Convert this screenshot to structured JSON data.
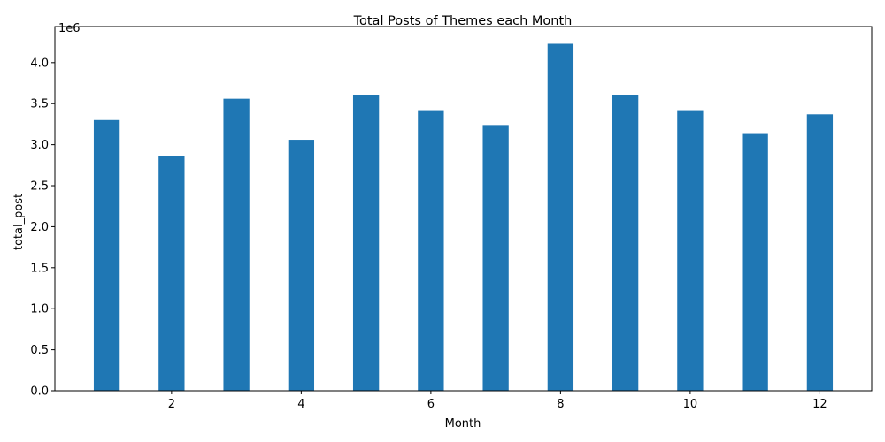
{
  "chart_data": {
    "type": "bar",
    "title": "Total Posts of Themes each Month",
    "xlabel": "Month",
    "ylabel": "total_post",
    "y_offset_text": "1e6",
    "y_scale": 1000000,
    "categories": [
      1,
      2,
      3,
      4,
      5,
      6,
      7,
      8,
      9,
      10,
      11,
      12
    ],
    "values": [
      3300000,
      2860000,
      3560000,
      3060000,
      3600000,
      3410000,
      3240000,
      4230000,
      3600000,
      3410000,
      3130000,
      3370000
    ],
    "xlim": [
      0.2,
      12.8
    ],
    "ylim": [
      0,
      4440000
    ],
    "x_ticks": [
      2,
      4,
      6,
      8,
      10,
      12
    ],
    "y_ticks": [
      0,
      500000,
      1000000,
      1500000,
      2000000,
      2500000,
      3000000,
      3500000,
      4000000
    ],
    "y_tick_labels": [
      "0.0",
      "0.5",
      "1.0",
      "1.5",
      "2.0",
      "2.5",
      "3.0",
      "3.5",
      "4.0"
    ],
    "bar_color": "#1f77b4",
    "grid": false,
    "legend": "none"
  }
}
